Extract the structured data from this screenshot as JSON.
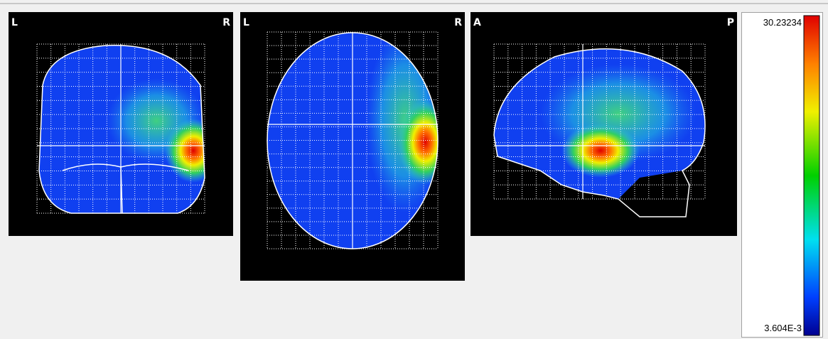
{
  "panels": [
    {
      "left_label": "L",
      "right_label": "R"
    },
    {
      "left_label": "L",
      "right_label": "R"
    },
    {
      "left_label": "A",
      "right_label": "P"
    }
  ],
  "colorbar": {
    "max_label": "30.23234",
    "min_label": "3.604E-3"
  }
}
